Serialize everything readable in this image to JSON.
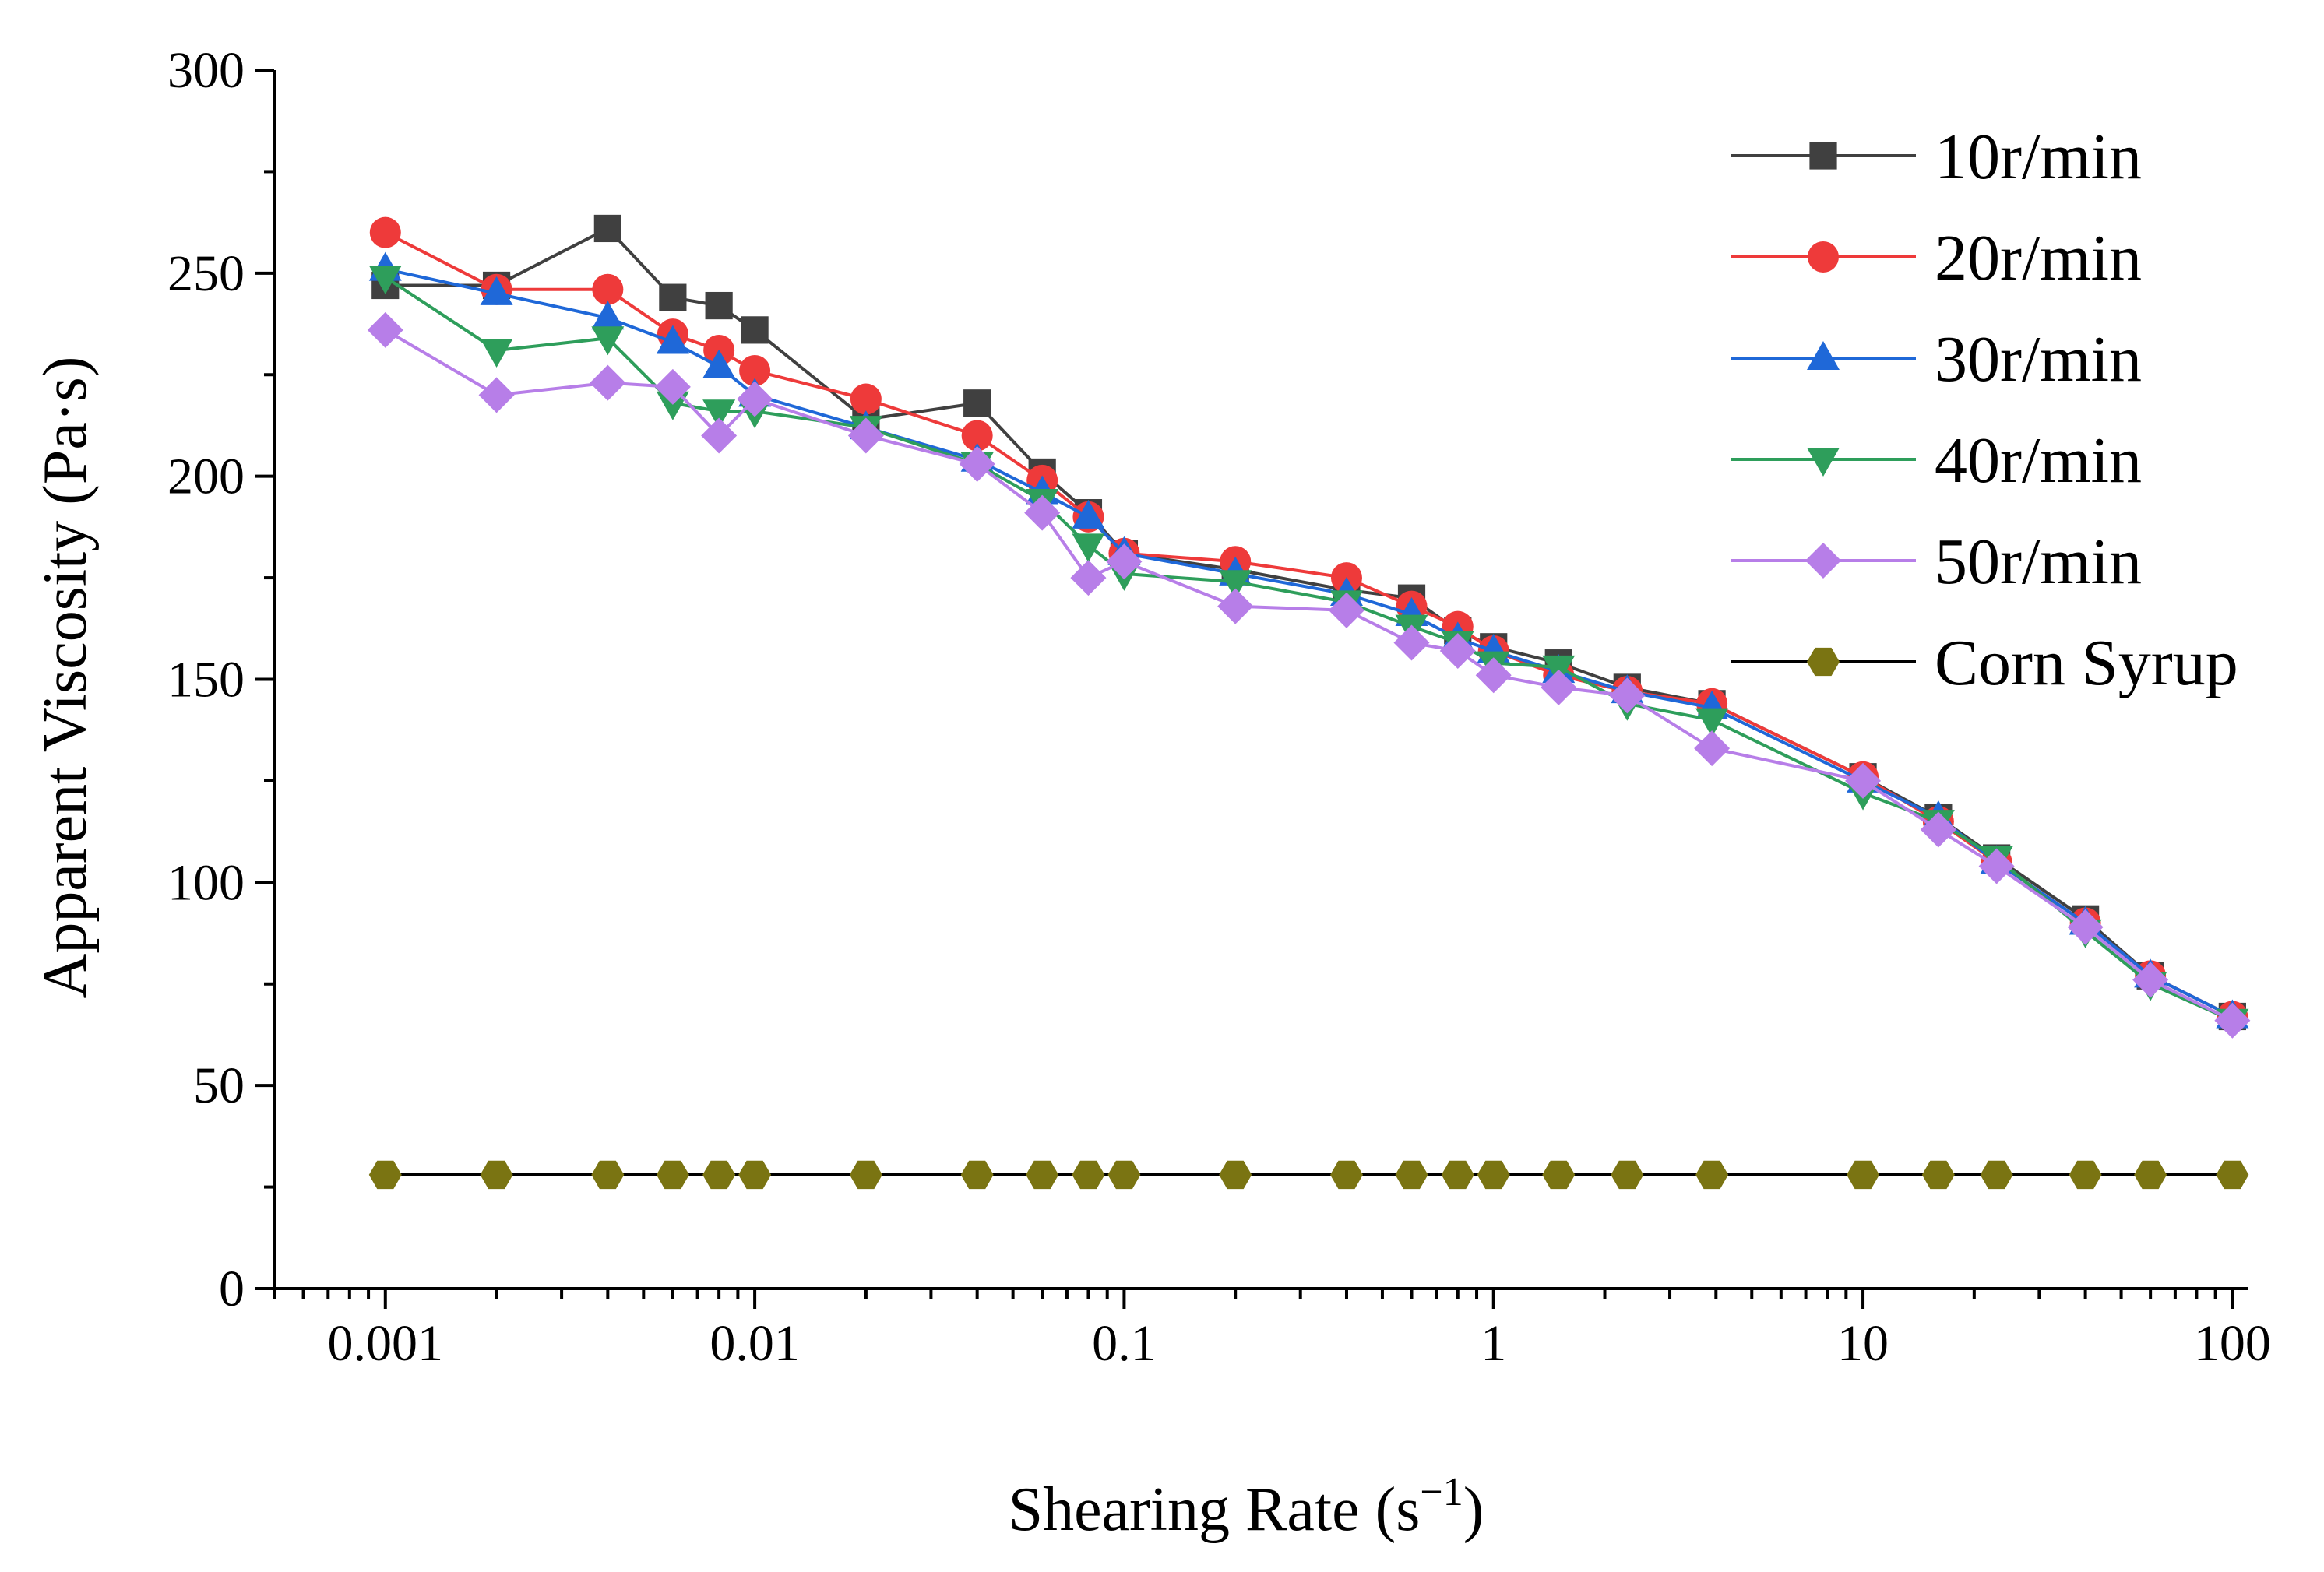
{
  "chart_data": {
    "type": "line",
    "title": "",
    "xlabel": "Shearing Rate (s",
    "xlabel_sup": "−1",
    "xlabel_close": ")",
    "ylabel": "Apparent Viscosity (Pa·s)",
    "xscale": "log",
    "xlim": [
      0.0005,
      110
    ],
    "ylim": [
      0,
      300
    ],
    "x_ticks": [
      0.001,
      0.01,
      0.1,
      1,
      10,
      100
    ],
    "x_tick_labels": [
      "0.001",
      "0.01",
      "0.1",
      "1",
      "10",
      "100"
    ],
    "y_ticks": [
      0,
      50,
      100,
      150,
      200,
      250,
      300
    ],
    "y_tick_labels": [
      "0",
      "50",
      "100",
      "150",
      "200",
      "250",
      "300"
    ],
    "legend_position": "top-right",
    "x": [
      0.001,
      0.002,
      0.004,
      0.006,
      0.008,
      0.01,
      0.02,
      0.04,
      0.06,
      0.08,
      0.1,
      0.2,
      0.4,
      0.6,
      0.8,
      1,
      1.5,
      2.3,
      3.9,
      10,
      16,
      23,
      40,
      60,
      100
    ],
    "series": [
      {
        "name": "10r/min",
        "color": "#404040",
        "marker": "square",
        "values": [
          247,
          247,
          261,
          244,
          242,
          236,
          214,
          218,
          201,
          191,
          181,
          177,
          172,
          170,
          162,
          158,
          154,
          148,
          144,
          126,
          116,
          106,
          91,
          77,
          67
        ]
      },
      {
        "name": "20r/min",
        "color": "#ee3a3a",
        "marker": "circle",
        "values": [
          260,
          246,
          246,
          235,
          231,
          226,
          219,
          210,
          199,
          190,
          181,
          179,
          175,
          168,
          163,
          157,
          151,
          147,
          144,
          126,
          115,
          105,
          90,
          77,
          67
        ]
      },
      {
        "name": "30r/min",
        "color": "#1f68d8",
        "marker": "triangle-up",
        "values": [
          251,
          245,
          239,
          233,
          227,
          220,
          212,
          204,
          196,
          190,
          181,
          176,
          171,
          166,
          160,
          157,
          152,
          147,
          143,
          125,
          116,
          105,
          90,
          77,
          67
        ]
      },
      {
        "name": "40r/min",
        "color": "#2e9e5b",
        "marker": "triangle-down",
        "values": [
          249,
          231,
          234,
          218,
          216,
          216,
          212,
          203,
          194,
          183,
          176,
          174,
          169,
          163,
          159,
          154,
          153,
          144,
          140,
          122,
          115,
          106,
          88,
          75,
          66
        ]
      },
      {
        "name": "50r/min",
        "color": "#b77ee8",
        "marker": "diamond",
        "values": [
          236,
          220,
          223,
          222,
          210,
          219,
          210,
          203,
          191,
          175,
          179,
          168,
          167,
          159,
          157,
          151,
          148,
          146,
          133,
          125,
          113,
          104,
          89,
          76,
          66
        ]
      },
      {
        "name": "Corn Syrup",
        "color": "#7a7412",
        "line_color": "#000000",
        "marker": "hexagon",
        "values": [
          28,
          28,
          28,
          28,
          28,
          28,
          28,
          28,
          28,
          28,
          28,
          28,
          28,
          28,
          28,
          28,
          28,
          28,
          28,
          28,
          28,
          28,
          28,
          28,
          28
        ]
      }
    ]
  }
}
